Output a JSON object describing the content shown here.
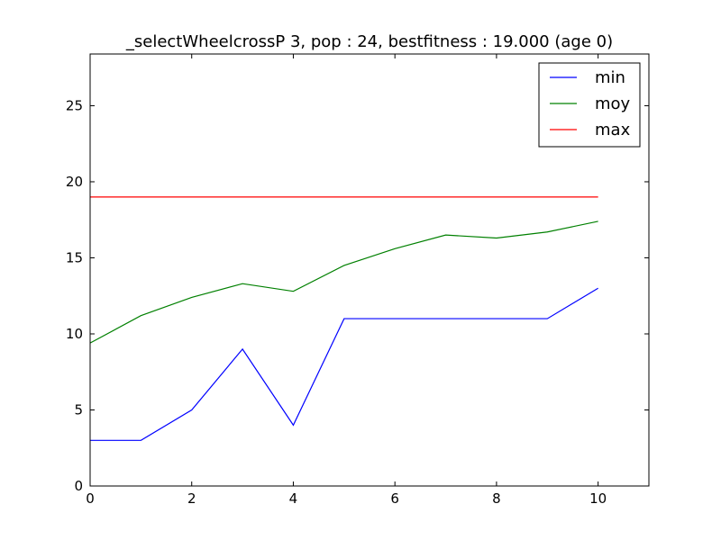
{
  "chart_data": {
    "type": "line",
    "title": "_selectWheelcrossP 3, pop : 24, bestfitness : 19.000 (age 0)",
    "xlabel": "",
    "ylabel": "",
    "xlim": [
      0,
      11
    ],
    "ylim": [
      0,
      28.4
    ],
    "xticks": [
      0,
      2,
      4,
      6,
      8,
      10
    ],
    "yticks": [
      0,
      5,
      10,
      15,
      20,
      25
    ],
    "grid": false,
    "legend_position": "top-right",
    "x": [
      0,
      1,
      2,
      3,
      4,
      5,
      6,
      7,
      8,
      9,
      10
    ],
    "series": [
      {
        "name": "min",
        "color": "#0000ff",
        "values": [
          3,
          3,
          5,
          9,
          4,
          11,
          11,
          11,
          11,
          11,
          13
        ]
      },
      {
        "name": "moy",
        "color": "#008000",
        "values": [
          9.4,
          11.2,
          12.4,
          13.3,
          12.8,
          14.5,
          15.6,
          16.5,
          16.3,
          16.7,
          17.4
        ]
      },
      {
        "name": "max",
        "color": "#ff0000",
        "values": [
          19,
          19,
          19,
          19,
          19,
          19,
          19,
          19,
          19,
          19,
          19
        ]
      }
    ]
  }
}
